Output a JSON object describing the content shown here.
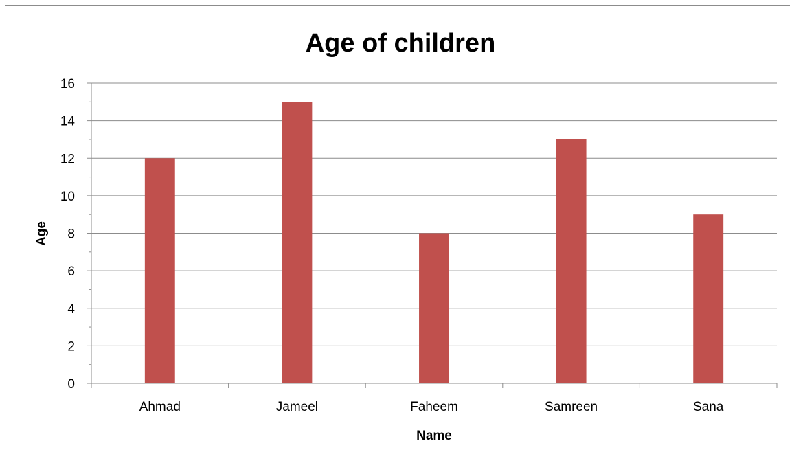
{
  "chart_data": {
    "type": "bar",
    "title": "Age of children",
    "xlabel": "Name",
    "ylabel": "Age",
    "categories": [
      "Ahmad",
      "Jameel",
      "Faheem",
      "Samreen",
      "Sana"
    ],
    "values": [
      12,
      15,
      8,
      13,
      9
    ],
    "ylim": [
      0,
      16
    ],
    "ytick_step": 2,
    "yticks": [
      "0",
      "2",
      "4",
      "6",
      "8",
      "10",
      "12",
      "14",
      "16"
    ],
    "grid": true,
    "legend": "none",
    "bar_color": "#c0504d"
  }
}
